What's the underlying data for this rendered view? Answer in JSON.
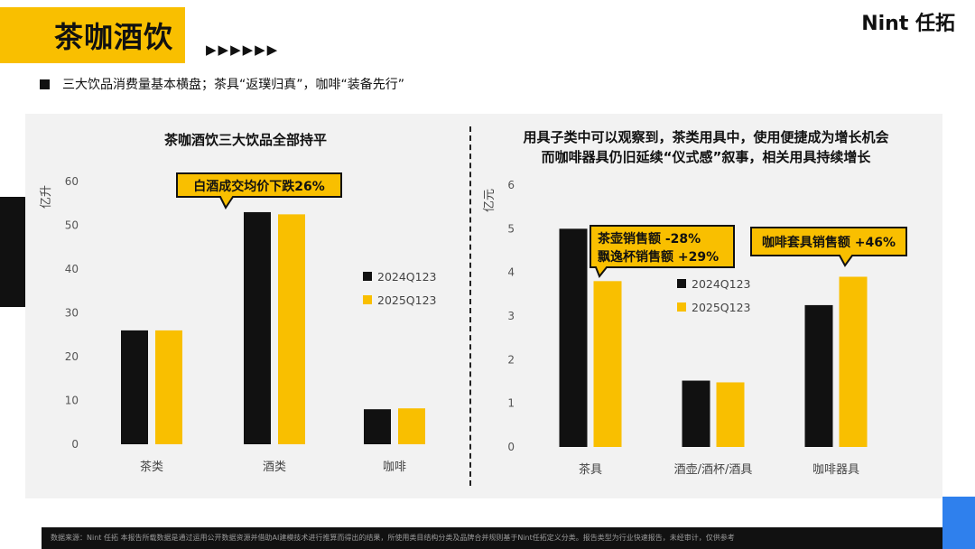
{
  "header": {
    "title": "茶咖酒饮",
    "arrows": "▶▶▶▶▶▶",
    "logo": "Nint 任拓"
  },
  "subtitle": "三大饮品消费量基本横盘；茶具“返璞归真”，咖啡“装备先行”",
  "colors": {
    "series_2024": "#111111",
    "series_2025": "#f9bf00",
    "accent": "#f9bf00",
    "footer_bg": "#111111",
    "blue_accent": "#2f80ed"
  },
  "chart_data": [
    {
      "type": "bar",
      "title": "茶咖酒饮三大饮品全部持平",
      "ylabel": "亿升",
      "ylim": [
        0,
        60
      ],
      "yticks": [
        "0",
        "10",
        "20",
        "30",
        "40",
        "50",
        "60"
      ],
      "categories": [
        "茶类",
        "酒类",
        "咖啡"
      ],
      "series": [
        {
          "name": "2024Q123",
          "values": [
            26,
            53,
            8
          ]
        },
        {
          "name": "2025Q123",
          "values": [
            26,
            52.5,
            8.2
          ]
        }
      ],
      "legend": "right",
      "annotations": [
        "白酒成交均价下跌26%"
      ]
    },
    {
      "type": "bar",
      "title_lines": [
        "用具子类中可以观察到，茶类用具中，使用便捷成为增长机会",
        "而咖啡器具仍旧延续“仪式感”叙事，相关用具持续增长"
      ],
      "ylabel": "亿元",
      "ylim": [
        0,
        6
      ],
      "yticks": [
        "0",
        "1",
        "2",
        "3",
        "4",
        "5",
        "6"
      ],
      "categories": [
        "茶具",
        "酒壶/酒杯/酒具",
        "咖啡器具"
      ],
      "series": [
        {
          "name": "2024Q123",
          "values": [
            5.0,
            1.52,
            3.25
          ]
        },
        {
          "name": "2025Q123",
          "values": [
            3.8,
            1.48,
            3.9
          ]
        }
      ],
      "legend": "center",
      "annotations": [
        "茶壶销售额 -28%",
        "飘逸杯销售额 +29%",
        "咖啡套具销售额 +46%"
      ]
    }
  ],
  "footer": "数据来源：Nint 任拓    本报告所载数据是通过运用公开数据资源并借助AI建模技术进行推算而得出的结果，所使用类目结构分类及品牌合并规则基于Nint任拓定义分类。报告类型为行业快速报告，未经审计，仅供参考"
}
